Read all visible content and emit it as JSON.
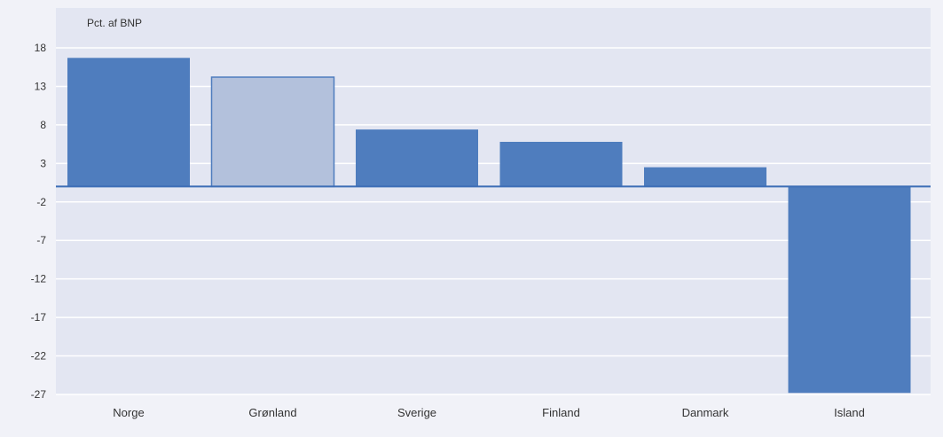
{
  "chart_data": {
    "type": "bar",
    "ylabel": "Pct. af BNP",
    "categories": [
      "Norge",
      "Grønland",
      "Sverige",
      "Finland",
      "Danmark",
      "Island"
    ],
    "values": [
      16.7,
      14.2,
      7.4,
      5.8,
      2.5,
      -26.8
    ],
    "highlight_index": 1,
    "ylim": [
      -27,
      21
    ],
    "yticks": [
      18,
      13,
      8,
      3,
      -2,
      -7,
      -12,
      -17,
      -22,
      -27
    ],
    "grid": true,
    "colors": {
      "bar": "#4f7dbe",
      "bar_highlight": "#b3c1dc",
      "bar_highlight_stroke": "#4f7dbe",
      "plot_background": "#e3e6f2",
      "gridline": "#ffffff",
      "zero_line": "#3d6eb6"
    }
  }
}
